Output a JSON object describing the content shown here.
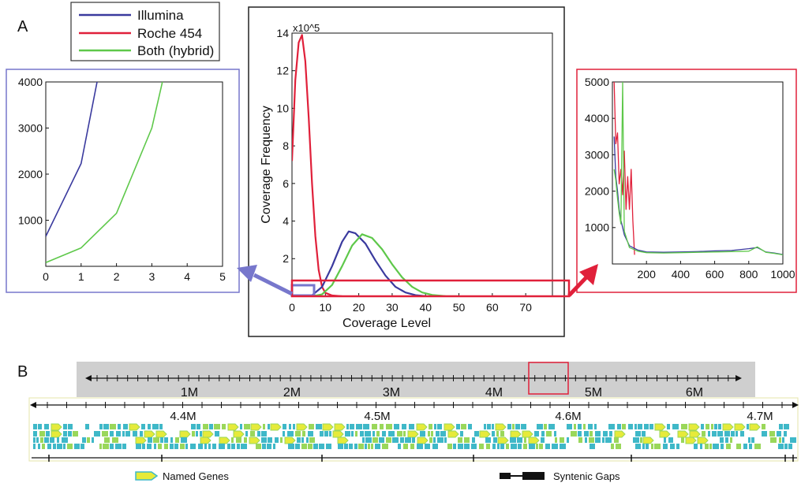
{
  "panel_labels": {
    "a": "A",
    "b": "B"
  },
  "legend": [
    {
      "label": "Illumina",
      "color": "#3a3a9e"
    },
    {
      "label": "Roche 454",
      "color": "#e0203a"
    },
    {
      "label": "Both (hybrid)",
      "color": "#5ec84a"
    }
  ],
  "colors": {
    "illumina": "#3a3a9e",
    "roche": "#e0203a",
    "hybrid": "#5ec84a",
    "left_frame": "#7777cc",
    "right_frame": "#e0203a",
    "gene_teal": "#3fb8c8",
    "gene_green": "#9ad75a",
    "gene_yellow": "#e6ea3a",
    "gray_band": "#cfcfcf"
  },
  "chart_data": [
    {
      "id": "main",
      "type": "line",
      "xlabel": "Coverage Level",
      "ylabel": "Coverage Frequency",
      "y_multiplier": "x10^5",
      "xlim": [
        0,
        78
      ],
      "ylim": [
        0,
        14
      ],
      "xticks": [
        0,
        10,
        20,
        30,
        40,
        50,
        60,
        70
      ],
      "yticks": [
        2,
        4,
        6,
        8,
        10,
        12,
        14
      ],
      "grid": false,
      "series": [
        {
          "name": "Roche 454",
          "color": "#e0203a",
          "x": [
            0,
            1,
            2,
            3,
            4,
            5,
            6,
            7,
            8,
            9,
            10,
            12,
            15
          ],
          "y": [
            7.2,
            11.5,
            13.5,
            13.9,
            12.5,
            9.5,
            6.0,
            3.2,
            1.4,
            0.5,
            0.18,
            0.04,
            0
          ]
        },
        {
          "name": "Illumina",
          "color": "#3a3a9e",
          "x": [
            0,
            3,
            6,
            9,
            12,
            15,
            17,
            19,
            22,
            25,
            28,
            31,
            34,
            37,
            40,
            45
          ],
          "y": [
            0,
            0,
            0.05,
            0.5,
            1.6,
            2.9,
            3.45,
            3.35,
            2.8,
            1.9,
            1.1,
            0.5,
            0.2,
            0.06,
            0.01,
            0
          ]
        },
        {
          "name": "Both (hybrid)",
          "color": "#5ec84a",
          "x": [
            0,
            3,
            6,
            9,
            12,
            15,
            18,
            21,
            24,
            27,
            30,
            33,
            36,
            39,
            42,
            46,
            50
          ],
          "y": [
            0,
            0,
            0,
            0.1,
            0.6,
            1.6,
            2.7,
            3.3,
            3.1,
            2.5,
            1.7,
            1.0,
            0.5,
            0.2,
            0.07,
            0.01,
            0
          ]
        }
      ]
    },
    {
      "id": "left-zoom",
      "type": "line",
      "xlim": [
        0,
        5
      ],
      "ylim": [
        0,
        4000
      ],
      "xticks": [
        0,
        1,
        2,
        3,
        4,
        5
      ],
      "yticks": [
        1000,
        2000,
        3000,
        4000
      ],
      "grid": false,
      "series": [
        {
          "name": "Illumina",
          "color": "#3a3a9e",
          "x": [
            0,
            1,
            1.45
          ],
          "y": [
            650,
            2230,
            4000
          ]
        },
        {
          "name": "Both (hybrid)",
          "color": "#5ec84a",
          "x": [
            0,
            1,
            2,
            3,
            3.3
          ],
          "y": [
            80,
            400,
            1150,
            3000,
            4000
          ]
        }
      ]
    },
    {
      "id": "right-zoom",
      "type": "line",
      "xlim": [
        0,
        1000
      ],
      "ylim": [
        0,
        5000
      ],
      "xticks": [
        200,
        400,
        600,
        800,
        1000
      ],
      "yticks": [
        1000,
        2000,
        3000,
        4000,
        5000
      ],
      "grid": false,
      "series": [
        {
          "name": "Roche 454",
          "color": "#e0203a",
          "x": [
            10,
            20,
            30,
            40,
            50,
            60,
            70,
            80,
            90,
            100,
            110,
            120,
            130
          ],
          "y": [
            5000,
            3300,
            3600,
            2200,
            2600,
            1900,
            3100,
            1500,
            2400,
            1500,
            2600,
            1200,
            250
          ]
        },
        {
          "name": "Illumina",
          "color": "#3a3a9e",
          "x": [
            10,
            20,
            30,
            40,
            50,
            60,
            70,
            80,
            100,
            150,
            200,
            300,
            400,
            500,
            600,
            700,
            800,
            850,
            900,
            950,
            1000
          ],
          "y": [
            3500,
            2400,
            2000,
            1500,
            1200,
            1000,
            800,
            700,
            500,
            380,
            330,
            320,
            330,
            340,
            360,
            370,
            420,
            450,
            330,
            300,
            260
          ]
        },
        {
          "name": "Both (hybrid)",
          "color": "#5ec84a",
          "x": [
            10,
            20,
            30,
            40,
            50,
            60,
            70,
            80,
            90,
            100,
            150,
            200,
            300,
            400,
            500,
            600,
            700,
            800,
            850,
            900,
            950,
            1000
          ],
          "y": [
            2600,
            2300,
            1800,
            1400,
            1100,
            5000,
            900,
            750,
            600,
            450,
            350,
            310,
            300,
            310,
            320,
            330,
            340,
            350,
            470,
            320,
            290,
            250
          ]
        }
      ]
    }
  ],
  "genome": {
    "top_ticks": [
      "1M",
      "2M",
      "3M",
      "4M",
      "5M",
      "6M"
    ],
    "bottom_ticks": [
      "4.4M",
      "4.5M",
      "4.6M",
      "4.7M"
    ],
    "legend_named_genes": "Named Genes",
    "legend_syntenic_gaps": "Syntenic Gaps"
  }
}
